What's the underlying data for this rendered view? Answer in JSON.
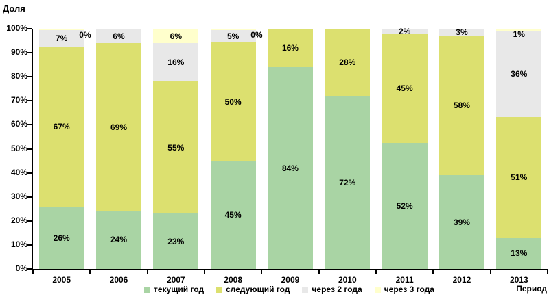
{
  "page": {
    "y_axis_title": "Доля",
    "x_axis_title": "Период"
  },
  "chart_data": {
    "type": "bar",
    "stacked": true,
    "percent_stacked": true,
    "title": "",
    "ylabel": "Доля",
    "xlabel": "Период",
    "grid": false,
    "legend_position": "bottom",
    "ylim": [
      0,
      100
    ],
    "y_ticks": [
      "0%",
      "10%",
      "20%",
      "30%",
      "40%",
      "50%",
      "60%",
      "70%",
      "80%",
      "90%",
      "100%"
    ],
    "categories": [
      "2005",
      "2006",
      "2007",
      "2008",
      "2009",
      "2010",
      "2011",
      "2012",
      "2013"
    ],
    "series": [
      {
        "name": "текущий год",
        "color": "#a9d4a4",
        "values": [
          26,
          24,
          23,
          45,
          84,
          72,
          52,
          39,
          13
        ],
        "labels": [
          "26%",
          "24%",
          "23%",
          "45%",
          "84%",
          "72%",
          "52%",
          "39%",
          "13%"
        ]
      },
      {
        "name": "следующий год",
        "color": "#dce06f",
        "values": [
          67,
          69,
          55,
          50,
          16,
          28,
          45,
          58,
          51
        ],
        "labels": [
          "67%",
          "69%",
          "55%",
          "50%",
          "16%",
          "28%",
          "45%",
          "58%",
          "51%"
        ]
      },
      {
        "name": "через 2 года",
        "color": "#e8e8e8",
        "values": [
          7,
          6,
          16,
          5,
          0,
          0,
          2,
          3,
          36
        ],
        "labels": [
          "7%",
          "6%",
          "16%",
          "5%",
          "",
          "",
          "2%",
          "3%",
          "36%"
        ]
      },
      {
        "name": "через 3 года",
        "color": "#ffffcc",
        "values": [
          0,
          0,
          6,
          0,
          0,
          0,
          0,
          0,
          1
        ],
        "labels": [
          "0%",
          "",
          "6%",
          "0%",
          "",
          "",
          "",
          "",
          "1%"
        ]
      }
    ]
  }
}
